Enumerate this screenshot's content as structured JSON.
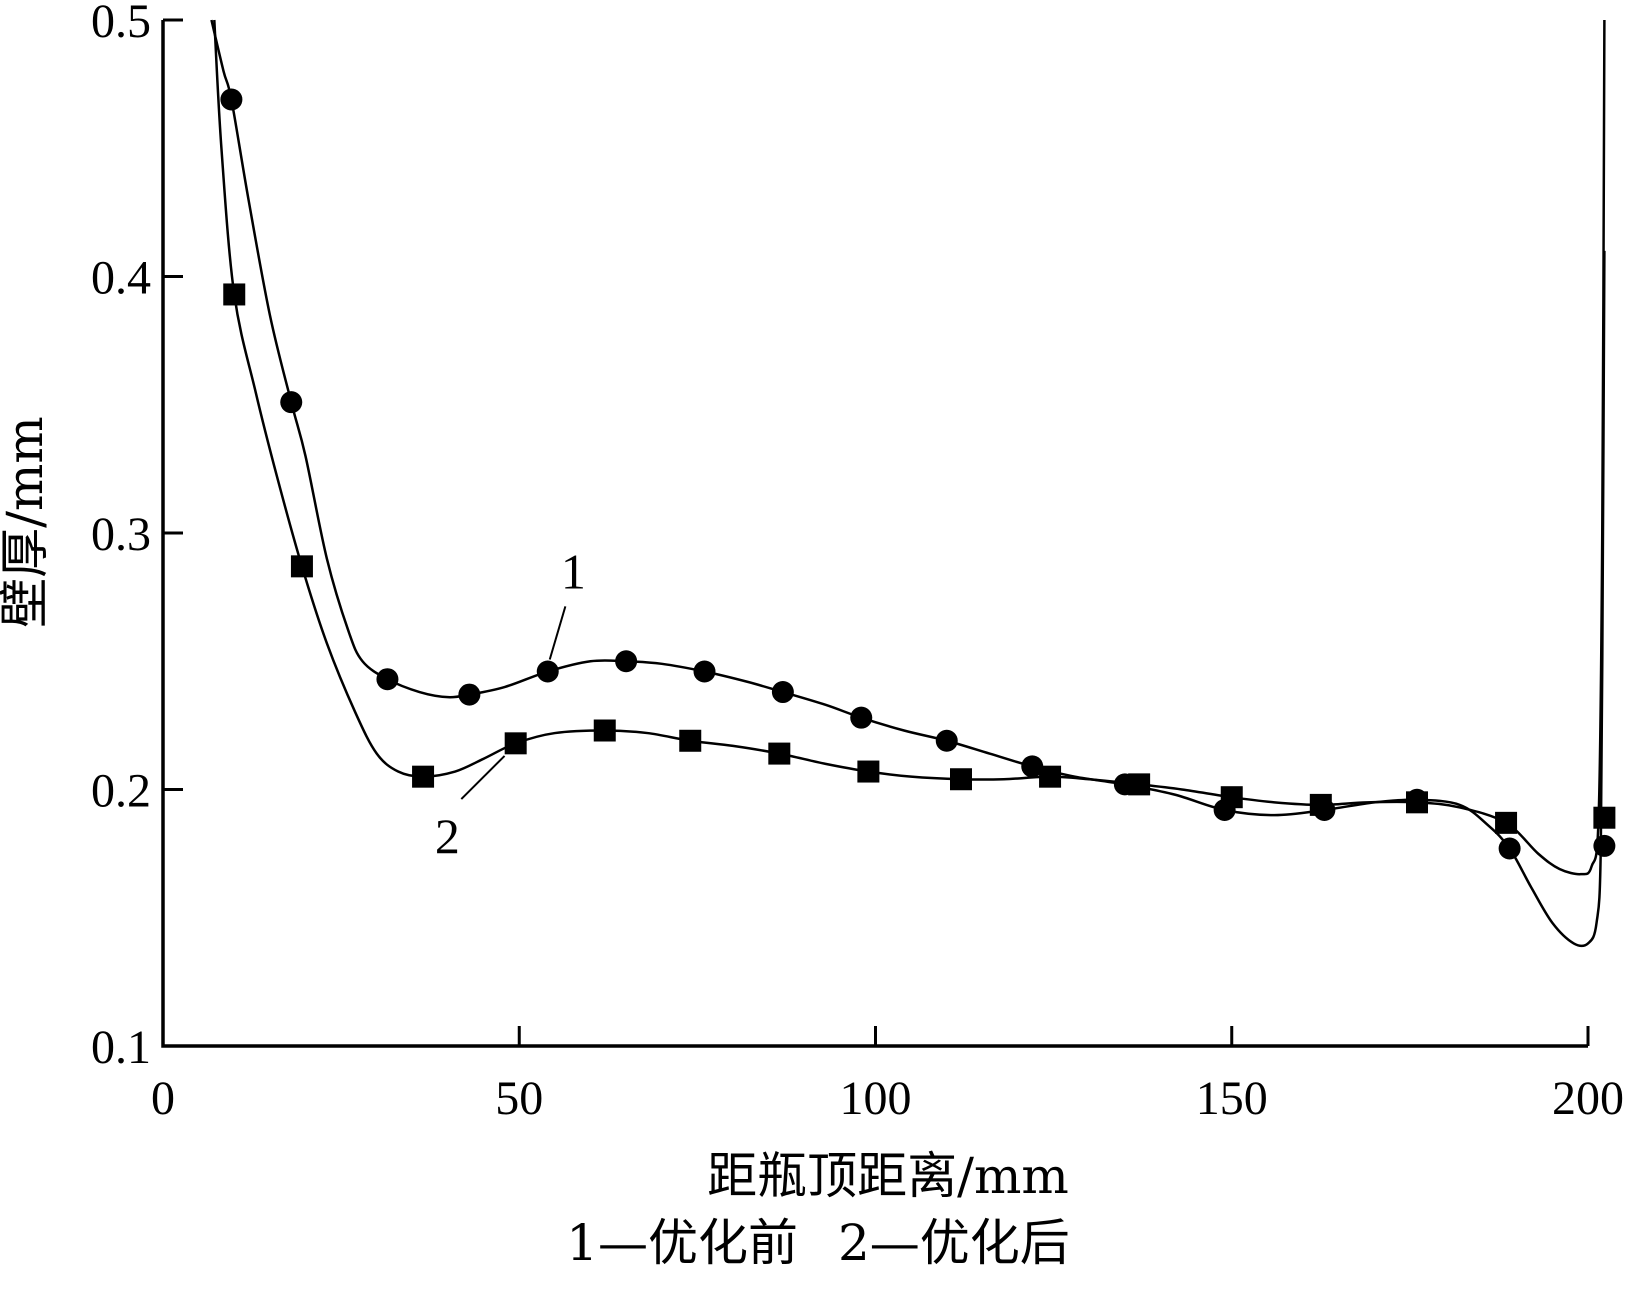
{
  "chart_data": {
    "type": "line",
    "xlabel": "距瓶顶距离/mm",
    "ylabel": "壁厚/mm",
    "xlim": [
      0,
      200
    ],
    "ylim": [
      0.1,
      0.5
    ],
    "xticks": [
      0,
      50,
      100,
      150,
      200
    ],
    "yticks": [
      0.1,
      0.2,
      0.3,
      0.4,
      0.5
    ],
    "xtick_labels": [
      "0",
      "50",
      "100",
      "150",
      "200"
    ],
    "ytick_labels": [
      "0.1",
      "0.2",
      "0.3",
      "0.4",
      "0.5"
    ],
    "grid": false,
    "legend_text": [
      "1—优化前",
      "2—优化后"
    ],
    "series": [
      {
        "name": "1—优化前",
        "marker": "circle",
        "annotation": "1",
        "points": [
          [
            9.6,
            0.469
          ],
          [
            18,
            0.351
          ],
          [
            31.5,
            0.243
          ],
          [
            43,
            0.237
          ],
          [
            54,
            0.246
          ],
          [
            65,
            0.25
          ],
          [
            76,
            0.246
          ],
          [
            87,
            0.238
          ],
          [
            98,
            0.228
          ],
          [
            110,
            0.219
          ],
          [
            122,
            0.209
          ],
          [
            135,
            0.202
          ],
          [
            149,
            0.192
          ],
          [
            163,
            0.192
          ],
          [
            176,
            0.196
          ],
          [
            189,
            0.177
          ],
          [
            202.3,
            0.178
          ]
        ],
        "curve": [
          [
            6.8,
            0.5
          ],
          [
            8.5,
            0.48
          ],
          [
            9.6,
            0.469
          ],
          [
            12,
            0.43
          ],
          [
            15,
            0.385
          ],
          [
            18,
            0.351
          ],
          [
            20,
            0.33
          ],
          [
            23,
            0.29
          ],
          [
            26,
            0.262
          ],
          [
            28,
            0.25
          ],
          [
            31.5,
            0.243
          ],
          [
            36,
            0.238
          ],
          [
            40,
            0.236
          ],
          [
            43,
            0.237
          ],
          [
            48,
            0.24
          ],
          [
            54,
            0.246
          ],
          [
            60,
            0.25
          ],
          [
            65,
            0.25
          ],
          [
            70,
            0.249
          ],
          [
            76,
            0.246
          ],
          [
            82,
            0.242
          ],
          [
            87,
            0.238
          ],
          [
            93,
            0.233
          ],
          [
            98,
            0.228
          ],
          [
            104,
            0.223
          ],
          [
            110,
            0.219
          ],
          [
            116,
            0.214
          ],
          [
            122,
            0.209
          ],
          [
            128,
            0.205
          ],
          [
            135,
            0.202
          ],
          [
            142,
            0.198
          ],
          [
            149,
            0.192
          ],
          [
            156,
            0.19
          ],
          [
            163,
            0.192
          ],
          [
            170,
            0.195
          ],
          [
            176,
            0.196
          ],
          [
            182,
            0.194
          ],
          [
            186,
            0.186
          ],
          [
            189,
            0.177
          ],
          [
            192,
            0.162
          ],
          [
            195,
            0.148
          ],
          [
            198,
            0.14
          ],
          [
            200,
            0.14
          ],
          [
            201.2,
            0.148
          ],
          [
            201.8,
            0.178
          ],
          [
            202.1,
            0.3
          ],
          [
            202.3,
            0.41
          ]
        ]
      },
      {
        "name": "2—优化后",
        "marker": "square",
        "annotation": "2",
        "points": [
          [
            10,
            0.393
          ],
          [
            19.5,
            0.287
          ],
          [
            36.5,
            0.205
          ],
          [
            49.5,
            0.218
          ],
          [
            62,
            0.223
          ],
          [
            74,
            0.219
          ],
          [
            86.5,
            0.214
          ],
          [
            99,
            0.207
          ],
          [
            112,
            0.204
          ],
          [
            124.5,
            0.205
          ],
          [
            137,
            0.202
          ],
          [
            150,
            0.197
          ],
          [
            162.5,
            0.194
          ],
          [
            176,
            0.195
          ],
          [
            188.5,
            0.187
          ],
          [
            202.3,
            0.189
          ]
        ],
        "curve": [
          [
            7.2,
            0.5
          ],
          [
            8.2,
            0.45
          ],
          [
            10,
            0.393
          ],
          [
            13,
            0.355
          ],
          [
            16,
            0.322
          ],
          [
            19.5,
            0.287
          ],
          [
            23,
            0.257
          ],
          [
            27,
            0.23
          ],
          [
            30,
            0.214
          ],
          [
            33,
            0.207
          ],
          [
            36.5,
            0.205
          ],
          [
            41,
            0.207
          ],
          [
            45,
            0.212
          ],
          [
            49.5,
            0.218
          ],
          [
            55,
            0.222
          ],
          [
            62,
            0.223
          ],
          [
            68,
            0.222
          ],
          [
            74,
            0.219
          ],
          [
            80,
            0.217
          ],
          [
            86.5,
            0.214
          ],
          [
            93,
            0.21
          ],
          [
            99,
            0.207
          ],
          [
            105,
            0.205
          ],
          [
            112,
            0.204
          ],
          [
            118,
            0.204
          ],
          [
            124.5,
            0.205
          ],
          [
            130,
            0.204
          ],
          [
            137,
            0.202
          ],
          [
            143,
            0.2
          ],
          [
            150,
            0.197
          ],
          [
            156,
            0.195
          ],
          [
            162.5,
            0.194
          ],
          [
            169,
            0.195
          ],
          [
            176,
            0.195
          ],
          [
            182,
            0.193
          ],
          [
            188.5,
            0.187
          ],
          [
            193,
            0.175
          ],
          [
            196,
            0.169
          ],
          [
            199,
            0.167
          ],
          [
            200.5,
            0.17
          ],
          [
            201.5,
            0.19
          ],
          [
            202,
            0.3
          ],
          [
            202.3,
            0.5
          ]
        ]
      }
    ],
    "annotations": [
      {
        "text": "1",
        "series": 0,
        "anchor": [
          54,
          0.246
        ],
        "label_at": [
          59,
          0.287
        ]
      },
      {
        "text": "2",
        "series": 1,
        "anchor": [
          48.5,
          0.217
        ],
        "label_at": [
          38.5,
          0.183
        ]
      }
    ]
  }
}
